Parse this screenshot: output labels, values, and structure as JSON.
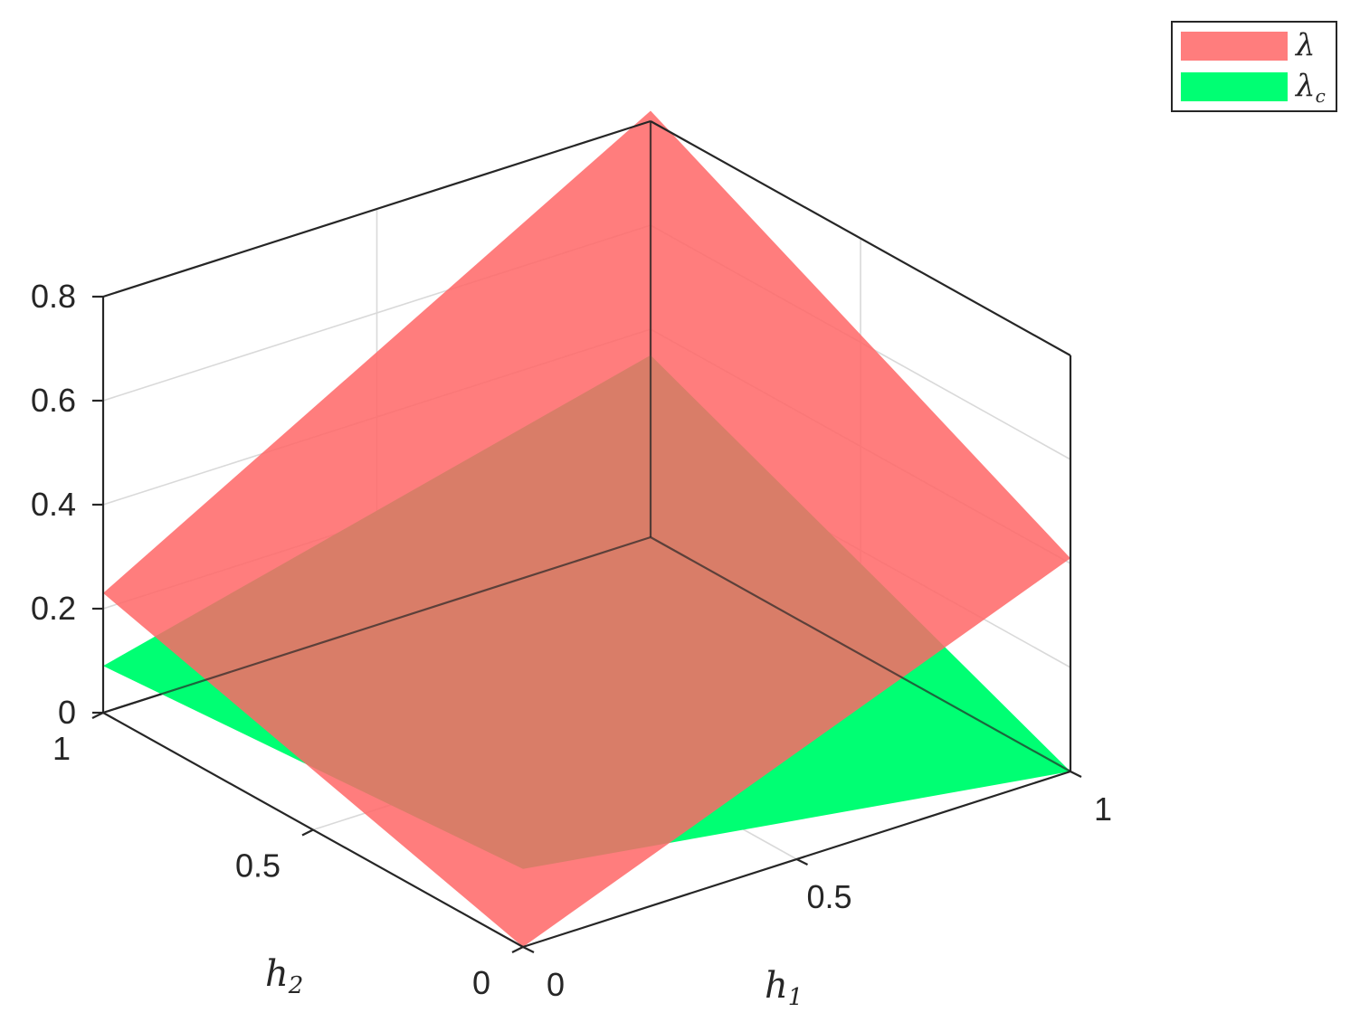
{
  "chart_data": {
    "type": "surface",
    "xlabel": "h",
    "xlabel_sub": "1",
    "ylabel": "h",
    "ylabel_sub": "2",
    "zlabel": "",
    "xlim": [
      0,
      1
    ],
    "ylim": [
      0,
      1
    ],
    "zlim": [
      0,
      0.8
    ],
    "xticks": [
      "0",
      "0.5",
      "1"
    ],
    "yticks": [
      "0",
      "0.5",
      "1"
    ],
    "zticks": [
      "0",
      "0.2",
      "0.4",
      "0.6",
      "0.8"
    ],
    "grid": true,
    "legend_position": "top-right",
    "series": [
      {
        "name": "λ",
        "name_sub": "",
        "color": "#ff6666",
        "opacity": 0.85,
        "corners": [
          {
            "h1": 0,
            "h2": 0,
            "z": 0.0
          },
          {
            "h1": 1,
            "h2": 0,
            "z": 0.41
          },
          {
            "h1": 1,
            "h2": 1,
            "z": 0.82
          },
          {
            "h1": 0,
            "h2": 1,
            "z": 0.23
          }
        ]
      },
      {
        "name": "λ",
        "name_sub": "c",
        "color": "#00ff73",
        "opacity": 1.0,
        "corners": [
          {
            "h1": 0,
            "h2": 0,
            "z": 0.15
          },
          {
            "h1": 1,
            "h2": 0,
            "z": 0.0
          },
          {
            "h1": 1,
            "h2": 1,
            "z": 0.35
          },
          {
            "h1": 0,
            "h2": 1,
            "z": 0.09
          }
        ]
      }
    ]
  }
}
